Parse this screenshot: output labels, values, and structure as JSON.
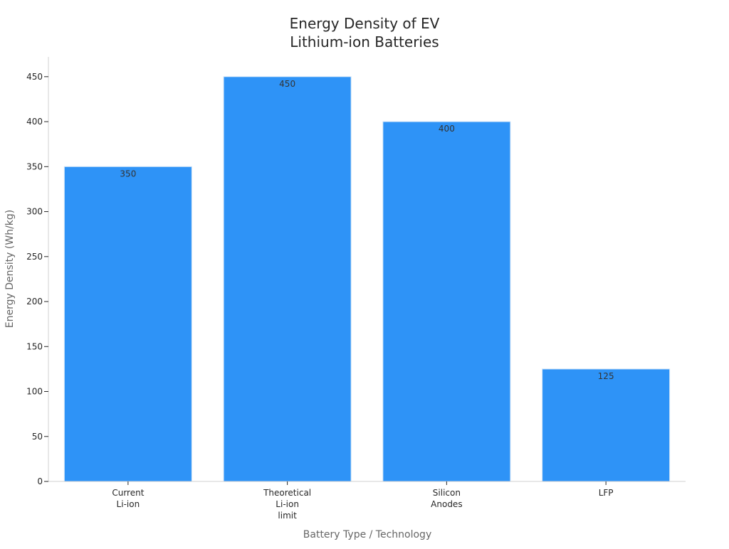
{
  "chart_data": {
    "type": "bar",
    "title_lines": [
      "Energy Density of EV",
      "Lithium-ion Batteries"
    ],
    "xlabel": "Battery Type / Technology",
    "ylabel": "Energy Density (Wh/kg)",
    "categories": [
      [
        "Current",
        "Li-ion"
      ],
      [
        "Theoretical",
        "Li-ion",
        "limit"
      ],
      [
        "Silicon",
        "Anodes"
      ],
      [
        "LFP"
      ]
    ],
    "values": [
      350,
      450,
      400,
      125
    ],
    "data_labels": [
      "350",
      "450",
      "400",
      "125"
    ],
    "ylim": [
      0,
      472
    ],
    "yticks": [
      0,
      50,
      100,
      150,
      200,
      250,
      300,
      350,
      400,
      450
    ],
    "grid": false,
    "legend": "none",
    "bar_color": "#2e93f7",
    "bar_edge_color": "#d0e4f7"
  }
}
